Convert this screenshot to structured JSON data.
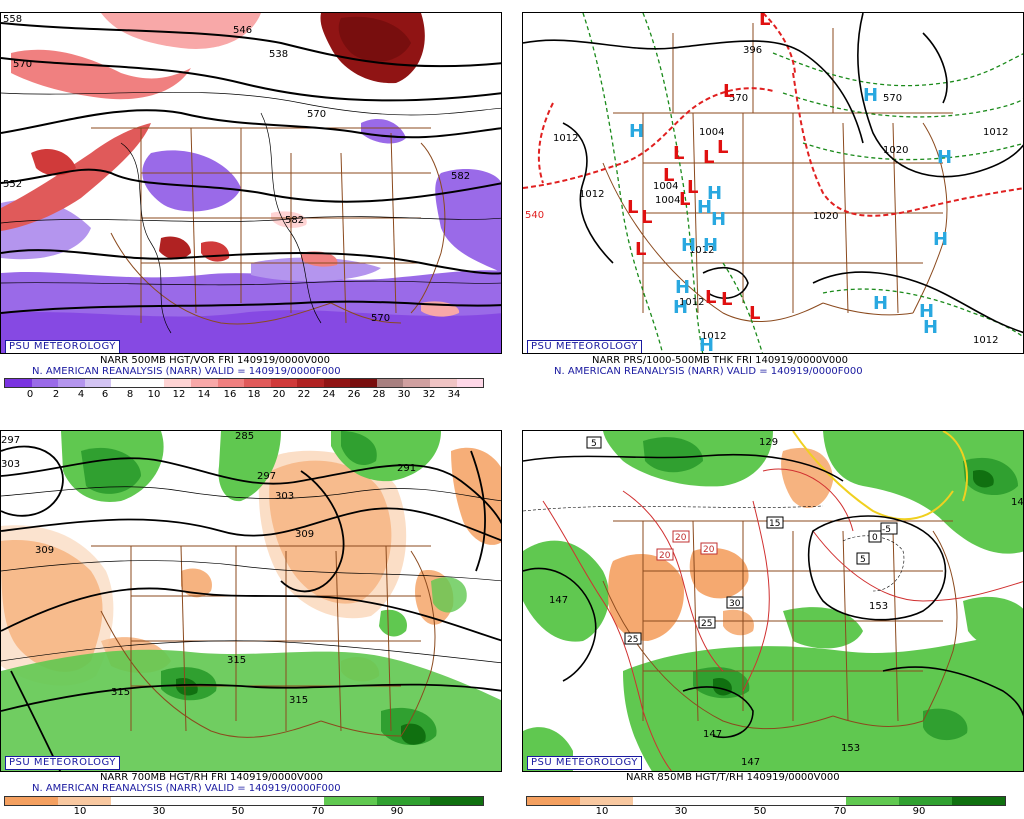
{
  "panels": [
    {
      "title": "NARR 500MB HGT/VOR FRI 140919/0000V000",
      "subtitle": "N. AMERICAN REANALYSIS (NARR) VALID = 140919/0000F000",
      "logo": "PSU METEOROLOGY",
      "colorbar_labels": [
        "0",
        "2",
        "4",
        "6",
        "8",
        "10",
        "12",
        "14",
        "16",
        "18",
        "20",
        "22",
        "24",
        "26",
        "28",
        "30",
        "32",
        "34"
      ],
      "colorbar_colors": [
        "#7a33e0",
        "#9a6ae8",
        "#b495ee",
        "#d3c4f3",
        "#ffffff",
        "#ffffff",
        "#ffd4d4",
        "#f8a8a8",
        "#f08080",
        "#e05a5a",
        "#d03a3a",
        "#b02222",
        "#901414",
        "#780e0e",
        "#a88080",
        "#d0a0a0",
        "#f0c4c4",
        "#ffd8e8"
      ],
      "contour_labels": [
        "558",
        "570",
        "546",
        "538",
        "570",
        "582",
        "552",
        "582",
        "570"
      ]
    },
    {
      "title": "NARR PRS/1000-500MB THK FRI 140919/0000V000",
      "subtitle": "N. AMERICAN REANALYSIS (NARR) VALID = 140919/0000F000",
      "logo": "PSU METEOROLOGY",
      "contour_labels": [
        "1012",
        "1012",
        "1004",
        "1004",
        "1004",
        "1012",
        "1012",
        "1012",
        "1020",
        "1012",
        "1012",
        "1020",
        "540",
        "570",
        "570",
        "396"
      ],
      "highs": 14,
      "lows": 14
    },
    {
      "title": "NARR 700MB HGT/RH FRI 140919/0000V000",
      "subtitle": "N. AMERICAN REANALYSIS (NARR) VALID = 140919/0000F000",
      "logo": "PSU METEOROLOGY",
      "colorbar_labels": [
        "10",
        "30",
        "50",
        "70",
        "90"
      ],
      "colorbar_colors": [
        "#f4a060",
        "#f8c8a0",
        "#ffffff",
        "#ffffff",
        "#ffffff",
        "#ffffff",
        "#60c850",
        "#30a030",
        "#107010"
      ],
      "contour_labels": [
        "297",
        "303",
        "285",
        "297",
        "291",
        "303",
        "309",
        "309",
        "315",
        "315",
        "315"
      ]
    },
    {
      "title": "NARR 850MB HGT/T/RH 140919/0000V000",
      "subtitle": "",
      "logo": "PSU METEOROLOGY",
      "colorbar_labels": [
        "10",
        "30",
        "50",
        "70",
        "90"
      ],
      "colorbar_colors": [
        "#f4a060",
        "#f8c8a0",
        "#ffffff",
        "#ffffff",
        "#ffffff",
        "#ffffff",
        "#60c850",
        "#30a030",
        "#107010"
      ],
      "contour_labels": [
        "129",
        "147",
        "153",
        "147",
        "147",
        "153",
        "147"
      ],
      "temp_boxes": [
        "5",
        "15",
        "20",
        "20",
        "20",
        "30",
        "25",
        "25",
        "5",
        "-5",
        "0"
      ]
    }
  ]
}
